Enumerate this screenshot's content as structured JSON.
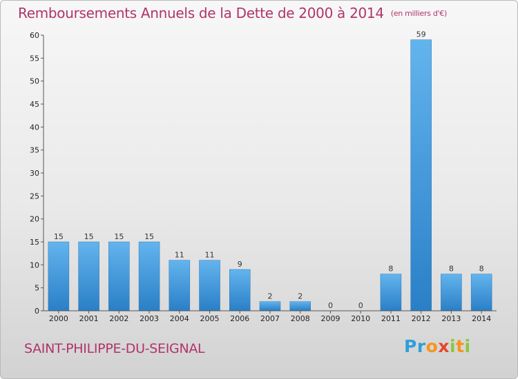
{
  "header": {
    "title": "Remboursements Annuels de la Dette de 2000 à 2014",
    "unit": "(en milliers d'€)"
  },
  "footer": {
    "commune": "SAINT-PHILIPPE-DU-SEIGNAL",
    "logo": "Proxiti"
  },
  "colors": {
    "title": "#b0346a",
    "bar_light": "#63b4ee",
    "bar_dark": "#2a7fc6"
  },
  "chart_data": {
    "type": "bar",
    "title": "Remboursements Annuels de la Dette de 2000 à 2014",
    "subtitle": "(en milliers d'€)",
    "xlabel": "",
    "ylabel": "",
    "categories": [
      "2000",
      "2001",
      "2002",
      "2003",
      "2004",
      "2005",
      "2006",
      "2007",
      "2008",
      "2009",
      "2010",
      "2011",
      "2012",
      "2013",
      "2014"
    ],
    "values": [
      15,
      15,
      15,
      15,
      11,
      11,
      9,
      2,
      2,
      0,
      0,
      8,
      59,
      8,
      8
    ],
    "ylim": [
      0,
      60
    ],
    "yticks": [
      0,
      5,
      10,
      15,
      20,
      25,
      30,
      35,
      40,
      45,
      50,
      55,
      60
    ],
    "grid": false,
    "legend": "none"
  }
}
